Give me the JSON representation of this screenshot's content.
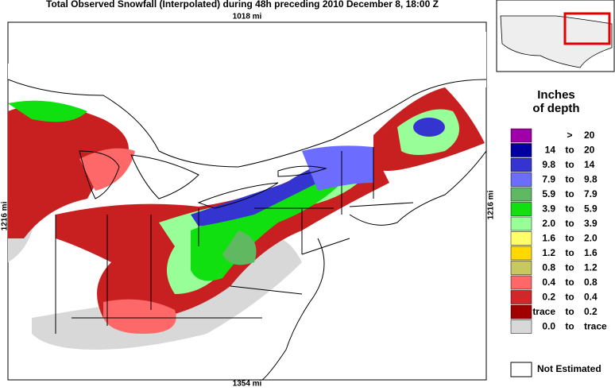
{
  "title": "Total Observed Snowfall (Interpolated) during 48h preceding 2010 December 8, 18:00 Z",
  "scale": {
    "top": "1018 mi",
    "bottom": "1354 mi",
    "left": "1216 mi",
    "right": "1216 mi"
  },
  "legend": {
    "title_lines": [
      "Inches",
      "of depth"
    ],
    "entries": [
      {
        "color": "#a000a8",
        "sep": ">",
        "high": "20"
      },
      {
        "color": "#0000a0",
        "low": "14",
        "sep": "to",
        "high": "20"
      },
      {
        "color": "#3434d0",
        "low": "9.8",
        "sep": "to",
        "high": "14"
      },
      {
        "color": "#6c6cff",
        "low": "7.9",
        "sep": "to",
        "high": "9.8"
      },
      {
        "color": "#60b860",
        "low": "5.9",
        "sep": "to",
        "high": "7.9"
      },
      {
        "color": "#10e010",
        "low": "3.9",
        "sep": "to",
        "high": "5.9"
      },
      {
        "color": "#98ff98",
        "low": "2.0",
        "sep": "to",
        "high": "3.9"
      },
      {
        "color": "#ffff68",
        "low": "1.6",
        "sep": "to",
        "high": "2.0"
      },
      {
        "color": "#ffd800",
        "low": "1.2",
        "sep": "to",
        "high": "1.6"
      },
      {
        "color": "#c8c860",
        "low": "0.8",
        "sep": "to",
        "high": "1.2"
      },
      {
        "color": "#ff6868",
        "low": "0.4",
        "sep": "to",
        "high": "0.8"
      },
      {
        "color": "#d02828",
        "low": "0.2",
        "sep": "to",
        "high": "0.4"
      },
      {
        "color": "#a00000",
        "low": "trace",
        "sep": "to",
        "high": "0.2"
      },
      {
        "color": "#d8d8d8",
        "low": "0.0",
        "sep": "to",
        "high": "trace"
      }
    ],
    "not_estimated": {
      "color": "#ffffff",
      "label": "Not Estimated"
    }
  }
}
